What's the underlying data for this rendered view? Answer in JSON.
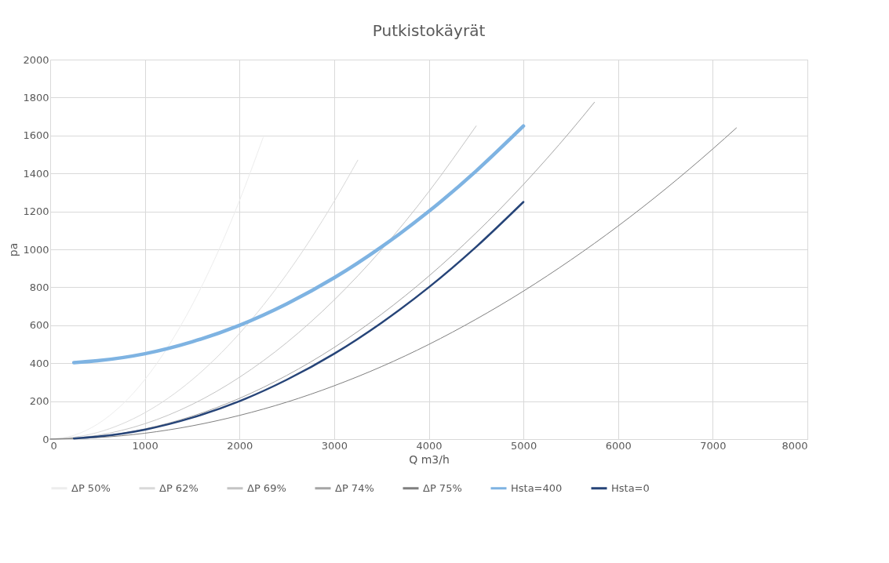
{
  "chart_data": {
    "type": "line",
    "title": "Putkistokäyrät",
    "xlabel": "Q m3/h",
    "ylabel": "pa",
    "xlim": [
      0,
      8000
    ],
    "xticks": [
      0,
      1000,
      2000,
      3000,
      4000,
      5000,
      6000,
      7000,
      8000
    ],
    "ylim": [
      0,
      2000
    ],
    "yticks": [
      0,
      200,
      400,
      600,
      800,
      1000,
      1200,
      1400,
      1600,
      1800,
      2000
    ],
    "grid": true,
    "legend": "bottom",
    "marker": "none",
    "line_style": "solid",
    "series": [
      {
        "name": "ΔP 50%",
        "color": "#ededed",
        "x": [
          0,
          250,
          500,
          750,
          1000,
          1250,
          1500,
          1750,
          2000,
          2250
        ],
        "values": [
          0,
          20,
          79,
          177,
          314,
          491,
          707,
          962,
          1257,
          1590
        ]
      },
      {
        "name": "ΔP 62%",
        "color": "#d9d9d9",
        "x": [
          0,
          500,
          1000,
          1500,
          2000,
          2500,
          3000,
          3250
        ],
        "values": [
          0,
          35,
          139,
          313,
          557,
          870,
          1253,
          1470
        ]
      },
      {
        "name": "ΔP 69%",
        "color": "#c4c4c4",
        "x": [
          0,
          500,
          1000,
          1500,
          2000,
          2500,
          3000,
          3500,
          4000,
          4500
        ],
        "values": [
          0,
          20,
          81,
          183,
          326,
          509,
          733,
          998,
          1304,
          1650
        ]
      },
      {
        "name": "ΔP 74%",
        "color": "#a5a5a5",
        "x": [
          0,
          500,
          1000,
          1500,
          2000,
          2500,
          3000,
          3500,
          4000,
          4500,
          5000,
          5500,
          5750
        ],
        "values": [
          0,
          13,
          54,
          121,
          215,
          336,
          483,
          658,
          859,
          1087,
          1342,
          1624,
          1775
        ]
      },
      {
        "name": "ΔP 75%",
        "color": "#7f7f7f",
        "x": [
          0,
          500,
          1000,
          1500,
          2000,
          2500,
          3000,
          3500,
          4000,
          4500,
          5000,
          5500,
          6000,
          6500,
          7000,
          7250
        ],
        "values": [
          0,
          8,
          31,
          70,
          125,
          195,
          281,
          382,
          499,
          632,
          780,
          944,
          1123,
          1318,
          1529,
          1640
        ]
      },
      {
        "name": "Hsta=400",
        "color": "#7eb3e2",
        "x": [
          250,
          500,
          1000,
          1500,
          2000,
          2500,
          3000,
          3500,
          4000,
          4500,
          5000
        ],
        "values": [
          403,
          413,
          450,
          513,
          600,
          713,
          850,
          1013,
          1200,
          1413,
          1650
        ]
      },
      {
        "name": "Hsta=0",
        "color": "#264478",
        "x": [
          250,
          500,
          1000,
          1500,
          2000,
          2500,
          3000,
          3500,
          4000,
          4500,
          5000
        ],
        "values": [
          3,
          13,
          50,
          113,
          200,
          313,
          450,
          613,
          800,
          1013,
          1250
        ]
      }
    ]
  }
}
